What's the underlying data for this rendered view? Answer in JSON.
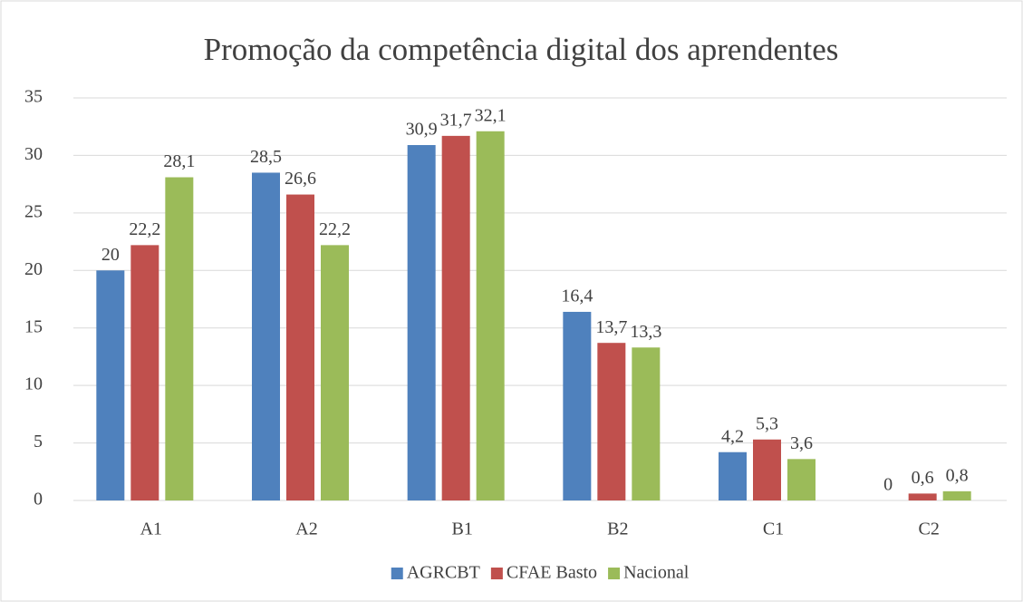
{
  "chart_data": {
    "type": "bar",
    "title": "Promoção da competência digital dos aprendentes",
    "categories": [
      "A1",
      "A2",
      "B1",
      "B2",
      "C1",
      "C2"
    ],
    "series": [
      {
        "name": "AGRCBT",
        "color": "#4f81bd",
        "values": [
          20,
          28.5,
          30.9,
          16.4,
          4.2,
          0
        ],
        "value_labels": [
          "20",
          "28,5",
          "30,9",
          "16,4",
          "4,2",
          "0"
        ]
      },
      {
        "name": "CFAE Basto",
        "color": "#c0504d",
        "values": [
          22.2,
          26.6,
          31.7,
          13.7,
          5.3,
          0.6
        ],
        "value_labels": [
          "22,2",
          "26,6",
          "31,7",
          "13,7",
          "5,3",
          "0,6"
        ]
      },
      {
        "name": "Nacional",
        "color": "#9bbb59",
        "values": [
          28.1,
          22.2,
          32.1,
          13.3,
          3.6,
          0.8
        ],
        "value_labels": [
          "28,1",
          "22,2",
          "32,1",
          "13,3",
          "3,6",
          "0,8"
        ]
      }
    ],
    "ylim": [
      0,
      35
    ],
    "yticks": [
      0,
      5,
      10,
      15,
      20,
      25,
      30,
      35
    ],
    "grid": true,
    "legend": "bottom"
  }
}
